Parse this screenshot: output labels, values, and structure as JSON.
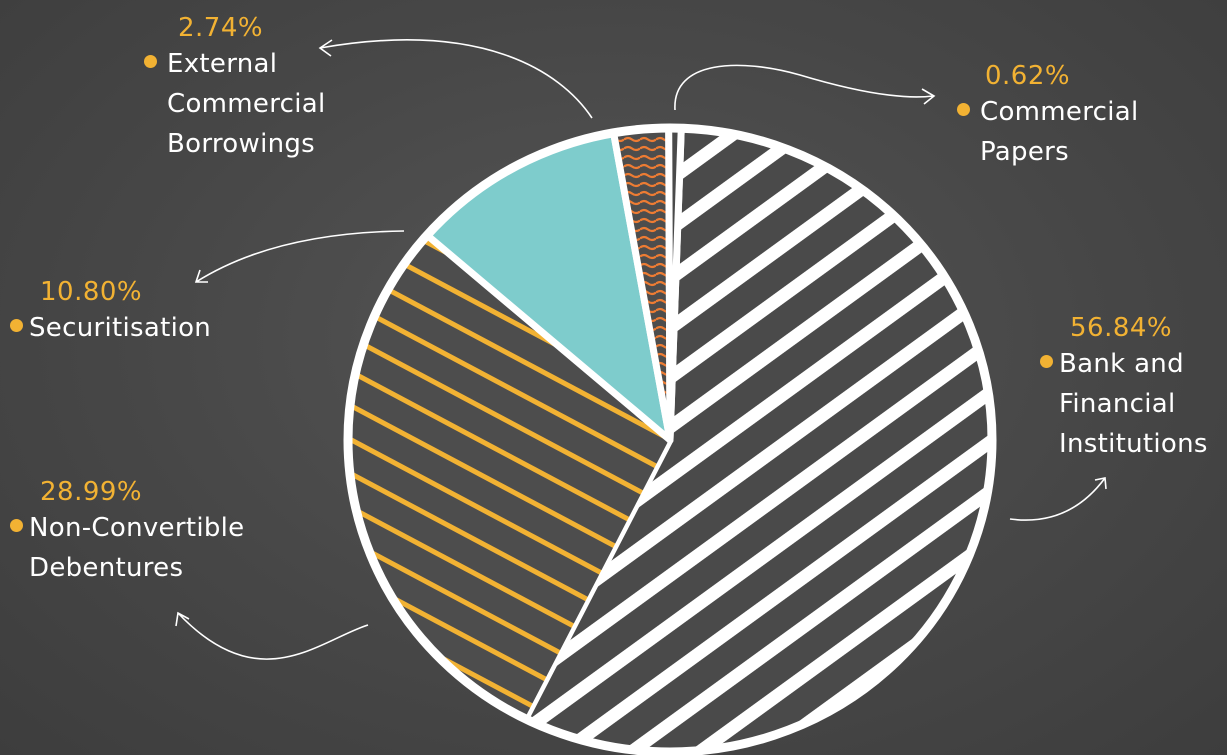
{
  "chart_data": {
    "type": "pie",
    "slices": [
      {
        "label": "Bank and Financial Institutions",
        "label_lines": "Bank and\nFinancial\nInstitutions",
        "value_text": "56.84%",
        "value": 56.84,
        "fill": "hatch-white",
        "color": "#ffffff"
      },
      {
        "label": "Non-Convertible Debentures",
        "label_lines": "Non-Convertible\nDebentures",
        "value_text": "28.99%",
        "value": 28.99,
        "fill": "hatch-orange",
        "color": "#f2b233"
      },
      {
        "label": "Securitisation",
        "label_lines": "Securitisation",
        "value_text": "10.80%",
        "value": 10.8,
        "fill": "solid",
        "color": "#7ecccc"
      },
      {
        "label": "External Commercial Borrowings",
        "label_lines": "External\nCommercial\nBorrowings",
        "value_text": "2.74%",
        "value": 2.74,
        "fill": "wavy",
        "color": "#ee7c33"
      },
      {
        "label": "Commercial Papers",
        "label_lines": "Commercial\nPapers",
        "value_text": "0.62%",
        "value": 0.62,
        "fill": "none",
        "color": "#ffffff"
      }
    ],
    "legend": "callouts-around-pie",
    "colors": {
      "background": "#4a4a4a",
      "outline": "#ffffff",
      "accent": "#f2b233"
    }
  }
}
